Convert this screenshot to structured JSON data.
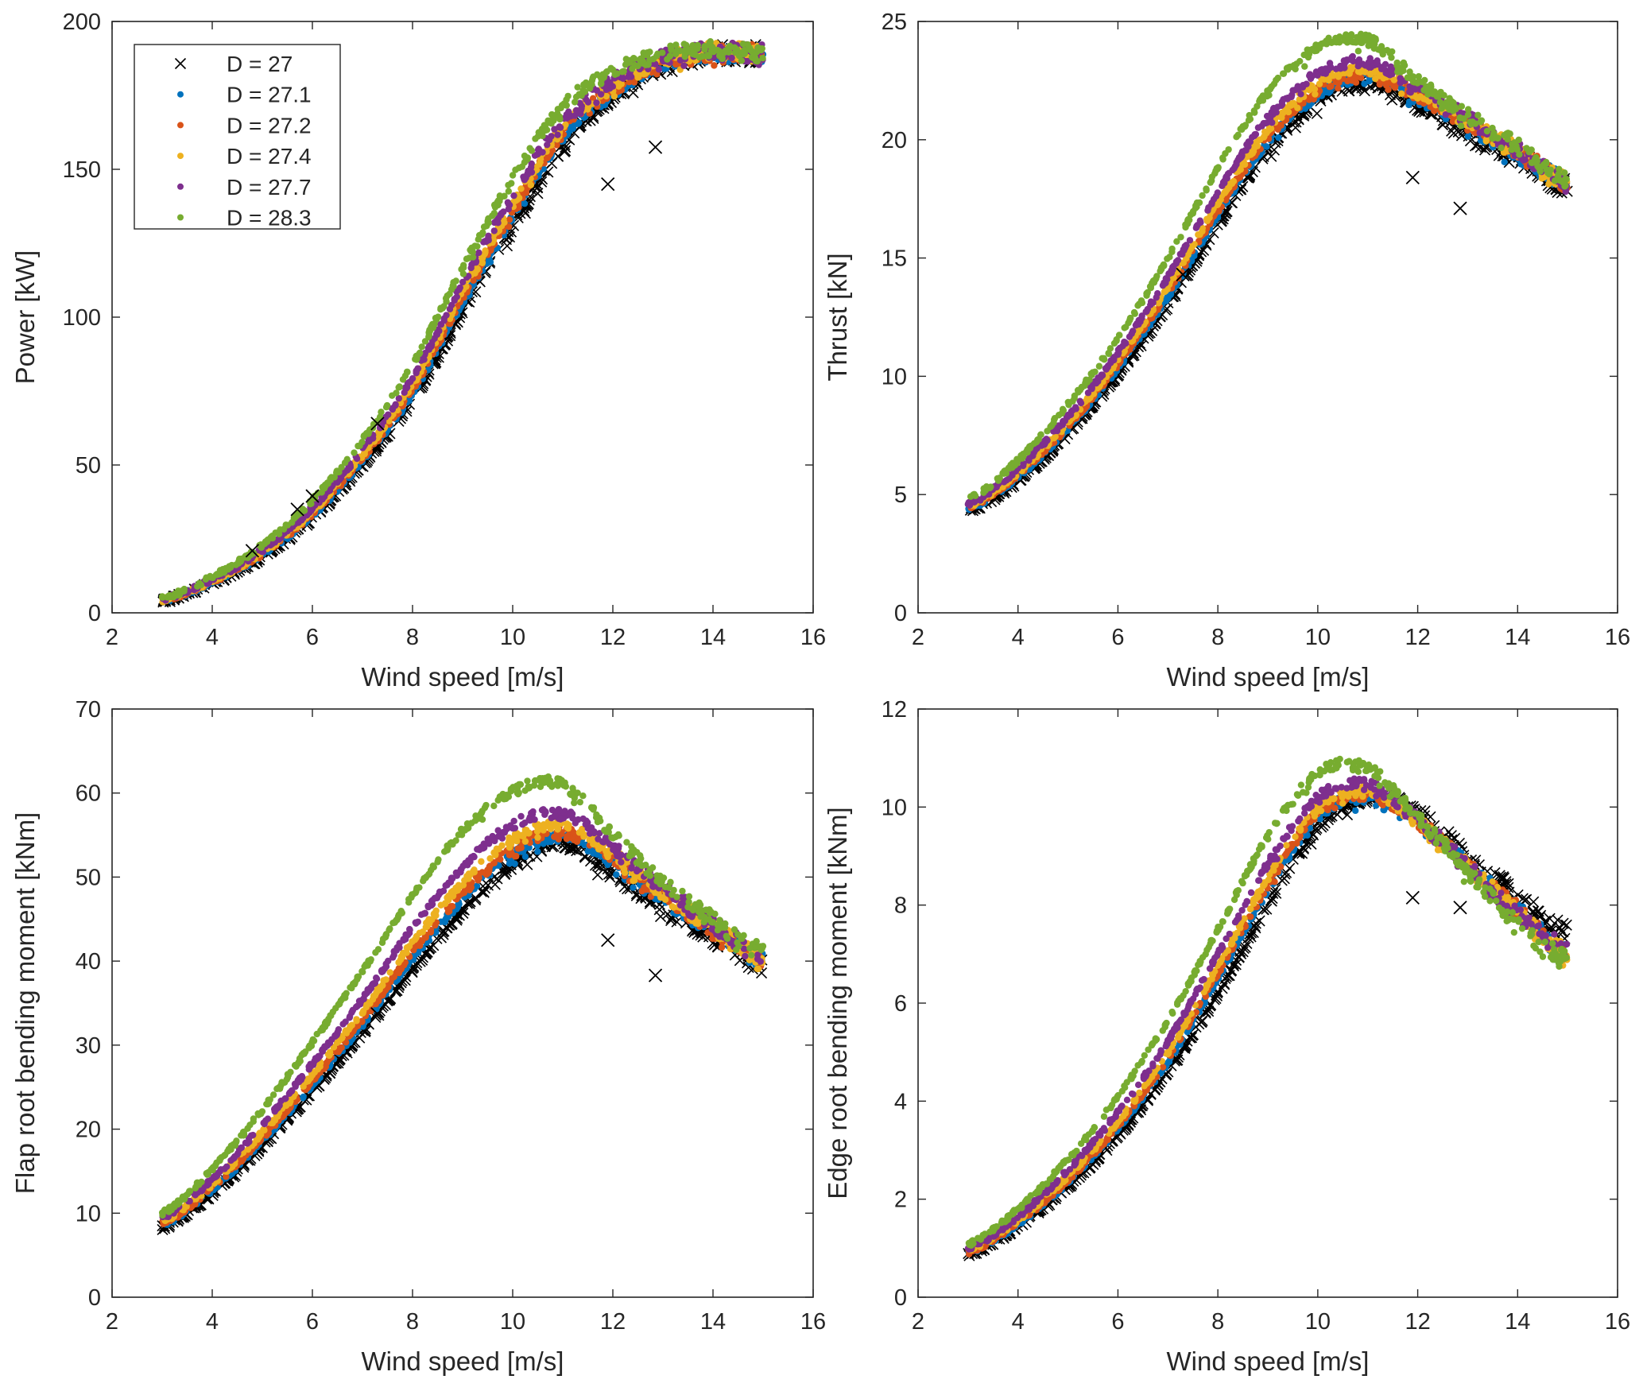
{
  "chart_data": [
    {
      "type": "scatter",
      "panel": "top-left",
      "title": "",
      "xlabel": "Wind speed [m/s]",
      "ylabel": "Power [kW]",
      "xlim": [
        2,
        16
      ],
      "ylim": [
        0,
        200
      ],
      "xticks": [
        2,
        4,
        6,
        8,
        10,
        12,
        14,
        16
      ],
      "yticks": [
        0,
        50,
        100,
        150,
        200
      ],
      "grid": false,
      "legend": {
        "placement": "top-left",
        "entries": [
          "D = 27",
          "D = 27.1",
          "D = 27.2",
          "D = 27.4",
          "D = 27.7",
          "D = 28.3"
        ]
      },
      "x": [
        3,
        4,
        5,
        6,
        7,
        8,
        9,
        10,
        11,
        12,
        13,
        14,
        15
      ],
      "series": [
        {
          "name": "D = 27",
          "marker": "x",
          "color": "#000000",
          "values": [
            4,
            10,
            19,
            32,
            50,
            72,
            102,
            131,
            158,
            175,
            185,
            189,
            189
          ]
        },
        {
          "name": "D = 27.1",
          "marker": "dot",
          "color": "#0072BD",
          "values": [
            4.2,
            10.4,
            19.6,
            33,
            51.5,
            74,
            105,
            134,
            161,
            176,
            186,
            189,
            189
          ]
        },
        {
          "name": "D = 27.2",
          "marker": "dot",
          "color": "#D95319",
          "values": [
            4.3,
            10.6,
            20,
            33.6,
            52.3,
            75.5,
            106.5,
            136,
            162.5,
            177,
            186.5,
            189.5,
            189
          ]
        },
        {
          "name": "D = 27.4",
          "marker": "dot",
          "color": "#EDB120",
          "values": [
            4.4,
            10.9,
            20.5,
            34.4,
            53.5,
            77,
            108.5,
            138,
            164,
            178,
            187,
            190,
            189
          ]
        },
        {
          "name": "D = 27.7",
          "marker": "dot",
          "color": "#7E2F8E",
          "values": [
            4.6,
            11.3,
            21.2,
            35.6,
            55.2,
            79.5,
            111.5,
            141,
            166.5,
            180,
            188,
            190,
            189
          ]
        },
        {
          "name": "D = 28.3",
          "marker": "dot",
          "color": "#77AC30",
          "values": [
            5,
            12.2,
            22.8,
            38,
            58.5,
            84,
            117,
            147,
            171.5,
            183,
            189,
            190.5,
            189.5
          ]
        }
      ],
      "outliers": [
        {
          "series": "D = 27",
          "x": 11.9,
          "y": 145
        },
        {
          "series": "D = 27",
          "x": 12.85,
          "y": 157.5
        },
        {
          "series": "D = 27",
          "x": 4.8,
          "y": 21
        },
        {
          "series": "D = 27",
          "x": 5.7,
          "y": 35
        },
        {
          "series": "D = 27",
          "x": 6.0,
          "y": 39.5
        },
        {
          "series": "D = 27",
          "x": 7.3,
          "y": 64
        }
      ]
    },
    {
      "type": "scatter",
      "panel": "top-right",
      "title": "",
      "xlabel": "Wind speed [m/s]",
      "ylabel": "Thrust [kN]",
      "xlim": [
        2,
        16
      ],
      "ylim": [
        0,
        25
      ],
      "xticks": [
        2,
        4,
        6,
        8,
        10,
        12,
        14,
        16
      ],
      "yticks": [
        0,
        5,
        10,
        15,
        20,
        25
      ],
      "grid": false,
      "x": [
        3,
        4,
        5,
        6,
        7,
        8,
        9,
        10,
        11,
        12,
        13,
        14,
        15
      ],
      "series": [
        {
          "name": "D = 27",
          "marker": "x",
          "color": "#000000",
          "values": [
            4.3,
            5.6,
            7.6,
            10.1,
            13.0,
            16.4,
            19.6,
            21.6,
            22.4,
            21.5,
            20.2,
            19.2,
            18.0
          ]
        },
        {
          "name": "D = 27.1",
          "marker": "dot",
          "color": "#0072BD",
          "values": [
            4.4,
            5.75,
            7.8,
            10.35,
            13.35,
            16.8,
            19.9,
            21.9,
            22.6,
            21.8,
            20.6,
            19.4,
            18.2
          ]
        },
        {
          "name": "D = 27.2",
          "marker": "dot",
          "color": "#D95319",
          "values": [
            4.45,
            5.85,
            7.9,
            10.5,
            13.55,
            17.0,
            20.1,
            22.1,
            22.75,
            21.9,
            20.7,
            19.5,
            18.2
          ]
        },
        {
          "name": "D = 27.4",
          "marker": "dot",
          "color": "#EDB120",
          "values": [
            4.5,
            5.95,
            8.05,
            10.7,
            13.8,
            17.3,
            20.4,
            22.4,
            23.0,
            22.0,
            20.8,
            19.5,
            18.2
          ]
        },
        {
          "name": "D = 27.7",
          "marker": "dot",
          "color": "#7E2F8E",
          "values": [
            4.6,
            6.1,
            8.3,
            11.0,
            14.2,
            17.8,
            20.9,
            22.8,
            23.3,
            22.2,
            20.9,
            19.6,
            18.1
          ]
        },
        {
          "name": "D = 28.3",
          "marker": "dot",
          "color": "#77AC30",
          "values": [
            4.8,
            6.45,
            8.8,
            11.6,
            15.0,
            18.8,
            22.0,
            23.9,
            24.2,
            22.5,
            21.0,
            19.7,
            18.2
          ]
        }
      ],
      "outliers": [
        {
          "series": "D = 27",
          "x": 11.9,
          "y": 18.4
        },
        {
          "series": "D = 27",
          "x": 12.85,
          "y": 17.1
        },
        {
          "series": "D = 27",
          "x": 7.3,
          "y": 14.3
        }
      ]
    },
    {
      "type": "scatter",
      "panel": "bottom-left",
      "title": "",
      "xlabel": "Wind speed [m/s]",
      "ylabel": "Flap root bending moment [kNm]",
      "xlim": [
        2,
        16
      ],
      "ylim": [
        0,
        70
      ],
      "xticks": [
        2,
        4,
        6,
        8,
        10,
        12,
        14,
        16
      ],
      "yticks": [
        0,
        10,
        20,
        30,
        40,
        50,
        60,
        70
      ],
      "grid": false,
      "x": [
        3,
        4,
        5,
        6,
        7,
        8,
        9,
        10,
        11,
        12,
        13,
        14,
        15
      ],
      "series": [
        {
          "name": "D = 27",
          "marker": "x",
          "color": "#000000",
          "values": [
            8.3,
            12.3,
            18.0,
            24.5,
            31.5,
            39.0,
            46.0,
            51.5,
            54.0,
            50.5,
            46.5,
            43.0,
            39.5
          ]
        },
        {
          "name": "D = 27.1",
          "marker": "dot",
          "color": "#0072BD",
          "values": [
            8.6,
            12.8,
            18.6,
            25.3,
            32.4,
            40.3,
            47.3,
            52.6,
            54.8,
            51.8,
            47.5,
            43.7,
            40.2
          ]
        },
        {
          "name": "D = 27.2",
          "marker": "dot",
          "color": "#D95319",
          "values": [
            8.8,
            13.1,
            19.0,
            25.8,
            33.0,
            41.0,
            48.0,
            53.3,
            55.4,
            52.2,
            47.8,
            43.9,
            40.4
          ]
        },
        {
          "name": "D = 27.4",
          "marker": "dot",
          "color": "#EDB120",
          "values": [
            9.0,
            13.5,
            19.6,
            26.6,
            34.0,
            42.2,
            49.3,
            54.5,
            56.2,
            52.7,
            48.2,
            44.1,
            40.5
          ]
        },
        {
          "name": "D = 27.7",
          "marker": "dot",
          "color": "#7E2F8E",
          "values": [
            9.4,
            14.1,
            20.5,
            27.8,
            35.5,
            44.0,
            51.2,
            56.2,
            57.5,
            53.5,
            48.7,
            44.4,
            40.6
          ]
        },
        {
          "name": "D = 28.3",
          "marker": "dot",
          "color": "#77AC30",
          "values": [
            10.0,
            15.3,
            22.3,
            30.3,
            38.8,
            47.8,
            55.5,
            60.2,
            61.0,
            55.0,
            49.5,
            45.0,
            41.0
          ]
        }
      ],
      "outliers": [
        {
          "series": "D = 27",
          "x": 11.9,
          "y": 42.5
        },
        {
          "series": "D = 27",
          "x": 12.85,
          "y": 38.3
        },
        {
          "series": "D = 27",
          "x": 7.3,
          "y": 33.7
        }
      ]
    },
    {
      "type": "scatter",
      "panel": "bottom-right",
      "title": "",
      "xlabel": "Wind speed [m/s]",
      "ylabel": "Edge root bending moment [kNm]",
      "xlim": [
        2,
        16
      ],
      "ylim": [
        0,
        12
      ],
      "xticks": [
        2,
        4,
        6,
        8,
        10,
        12,
        14,
        16
      ],
      "yticks": [
        0,
        2,
        4,
        6,
        8,
        10,
        12
      ],
      "grid": false,
      "x": [
        3,
        4,
        5,
        6,
        7,
        8,
        9,
        10,
        11,
        12,
        13,
        14,
        15
      ],
      "series": [
        {
          "name": "D = 27",
          "marker": "x",
          "color": "#000000",
          "values": [
            0.85,
            1.45,
            2.25,
            3.3,
            4.6,
            6.2,
            8.0,
            9.6,
            10.2,
            9.9,
            9.0,
            8.2,
            7.4
          ]
        },
        {
          "name": "D = 27.1",
          "marker": "dot",
          "color": "#0072BD",
          "values": [
            0.9,
            1.5,
            2.35,
            3.45,
            4.8,
            6.5,
            8.3,
            9.8,
            10.2,
            9.7,
            8.8,
            7.9,
            7.0
          ]
        },
        {
          "name": "D = 27.2",
          "marker": "dot",
          "color": "#D95319",
          "values": [
            0.92,
            1.53,
            2.4,
            3.5,
            4.88,
            6.6,
            8.4,
            9.9,
            10.25,
            9.7,
            8.8,
            7.9,
            7.0
          ]
        },
        {
          "name": "D = 27.4",
          "marker": "dot",
          "color": "#EDB120",
          "values": [
            0.95,
            1.58,
            2.48,
            3.6,
            5.0,
            6.75,
            8.55,
            10.0,
            10.3,
            9.7,
            8.8,
            7.85,
            7.0
          ]
        },
        {
          "name": "D = 27.7",
          "marker": "dot",
          "color": "#7E2F8E",
          "values": [
            1.0,
            1.65,
            2.6,
            3.78,
            5.22,
            7.0,
            8.85,
            10.2,
            10.45,
            9.75,
            8.8,
            7.8,
            7.1
          ]
        },
        {
          "name": "D = 28.3",
          "marker": "dot",
          "color": "#77AC30",
          "values": [
            1.08,
            1.8,
            2.82,
            4.1,
            5.65,
            7.5,
            9.4,
            10.7,
            10.8,
            9.8,
            8.7,
            7.6,
            6.9
          ]
        }
      ],
      "outliers": [
        {
          "series": "D = 27",
          "x": 11.9,
          "y": 8.15
        },
        {
          "series": "D = 27",
          "x": 12.85,
          "y": 7.95
        }
      ]
    }
  ]
}
